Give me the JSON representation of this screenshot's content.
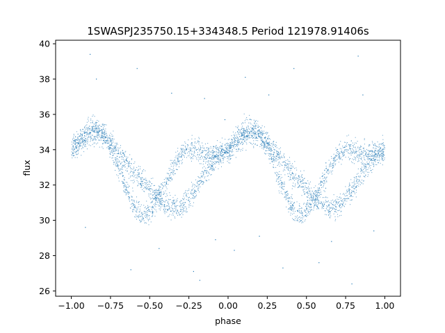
{
  "chart_data": {
    "type": "scatter",
    "title": "1SWASPJ235750.15+334348.5 Period 121978.91406s",
    "xlabel": "phase",
    "ylabel": "flux",
    "xlim": [
      -1.1,
      1.1
    ],
    "ylim": [
      25.7,
      40.2
    ],
    "grid": false,
    "legend": "none",
    "marker_color": "#1f77b4",
    "x_ticks": [
      {
        "value": -1.0,
        "label": "−1.00"
      },
      {
        "value": -0.75,
        "label": "−0.75"
      },
      {
        "value": -0.5,
        "label": "−0.50"
      },
      {
        "value": -0.25,
        "label": "−0.25"
      },
      {
        "value": 0.0,
        "label": "0.00"
      },
      {
        "value": 0.25,
        "label": "0.25"
      },
      {
        "value": 0.5,
        "label": "0.50"
      },
      {
        "value": 0.75,
        "label": "0.75"
      },
      {
        "value": 1.0,
        "label": "1.00"
      }
    ],
    "y_ticks": [
      {
        "value": 26,
        "label": "26"
      },
      {
        "value": 28,
        "label": "28"
      },
      {
        "value": 30,
        "label": "30"
      },
      {
        "value": 32,
        "label": "32"
      },
      {
        "value": 34,
        "label": "34"
      },
      {
        "value": 36,
        "label": "36"
      },
      {
        "value": 38,
        "label": "38"
      },
      {
        "value": 40,
        "label": "40"
      }
    ],
    "series": [
      {
        "x": [
          -1.0,
          -0.95,
          -0.9,
          -0.85,
          -0.8,
          -0.75,
          -0.7,
          -0.65,
          -0.6,
          -0.55,
          -0.5,
          -0.45,
          -0.4,
          -0.35,
          -0.3,
          -0.25,
          -0.2,
          -0.15,
          -0.1,
          -0.05,
          0.0,
          0.05,
          0.1,
          0.15,
          0.2,
          0.25,
          0.3,
          0.35,
          0.4,
          0.45,
          0.5,
          0.55,
          0.6,
          0.65,
          0.7,
          0.75,
          0.8,
          0.85,
          0.9,
          0.95,
          1.0
        ],
        "y": [
          34.1,
          34.3,
          34.7,
          34.9,
          34.8,
          34.4,
          33.9,
          33.3,
          32.7,
          32.2,
          31.8,
          31.3,
          30.9,
          30.7,
          30.8,
          31.2,
          31.9,
          32.6,
          33.2,
          33.7,
          34.0,
          34.3,
          34.7,
          34.9,
          34.8,
          34.4,
          33.9,
          33.3,
          32.7,
          32.2,
          31.8,
          31.3,
          30.9,
          30.7,
          30.8,
          31.2,
          31.9,
          32.6,
          33.2,
          33.7,
          34.0
        ]
      },
      {
        "x": [
          -1.0,
          -0.95,
          -0.9,
          -0.85,
          -0.8,
          -0.75,
          -0.7,
          -0.65,
          -0.6,
          -0.55,
          -0.5,
          -0.45,
          -0.4,
          -0.35,
          -0.3,
          -0.25,
          -0.2,
          -0.15,
          -0.1,
          -0.05,
          0.0,
          0.05,
          0.1,
          0.15,
          0.2,
          0.25,
          0.3,
          0.35,
          0.4,
          0.45,
          0.5,
          0.55,
          0.6,
          0.65,
          0.7,
          0.75,
          0.8,
          0.85,
          0.9,
          0.95,
          1.0
        ],
        "y": [
          33.9,
          34.6,
          35.1,
          35.3,
          35.0,
          34.2,
          33.0,
          31.8,
          30.8,
          30.3,
          30.5,
          31.2,
          32.1,
          33.0,
          33.7,
          34.1,
          34.0,
          33.7,
          33.8,
          33.9,
          33.9,
          34.6,
          35.1,
          35.3,
          35.0,
          34.2,
          33.0,
          31.8,
          30.8,
          30.3,
          30.5,
          31.2,
          32.1,
          33.0,
          33.7,
          34.1,
          34.0,
          33.7,
          33.8,
          33.9,
          33.9
        ]
      }
    ],
    "outliers": [
      {
        "x": -0.88,
        "y": 39.4
      },
      {
        "x": -0.84,
        "y": 38.0
      },
      {
        "x": -0.91,
        "y": 29.6
      },
      {
        "x": -0.62,
        "y": 27.2
      },
      {
        "x": -0.58,
        "y": 38.6
      },
      {
        "x": -0.44,
        "y": 28.4
      },
      {
        "x": -0.36,
        "y": 37.2
      },
      {
        "x": -0.22,
        "y": 27.1
      },
      {
        "x": -0.18,
        "y": 26.6
      },
      {
        "x": -0.15,
        "y": 36.9
      },
      {
        "x": -0.08,
        "y": 28.9
      },
      {
        "x": 0.04,
        "y": 28.3
      },
      {
        "x": 0.11,
        "y": 38.1
      },
      {
        "x": 0.26,
        "y": 37.1
      },
      {
        "x": 0.35,
        "y": 27.3
      },
      {
        "x": 0.42,
        "y": 38.6
      },
      {
        "x": 0.58,
        "y": 27.6
      },
      {
        "x": 0.66,
        "y": 28.8
      },
      {
        "x": 0.79,
        "y": 26.4
      },
      {
        "x": 0.83,
        "y": 39.3
      },
      {
        "x": 0.86,
        "y": 37.1
      },
      {
        "x": 0.93,
        "y": 29.4
      },
      {
        "x": -0.02,
        "y": 35.7
      },
      {
        "x": 0.2,
        "y": 29.1
      }
    ]
  }
}
